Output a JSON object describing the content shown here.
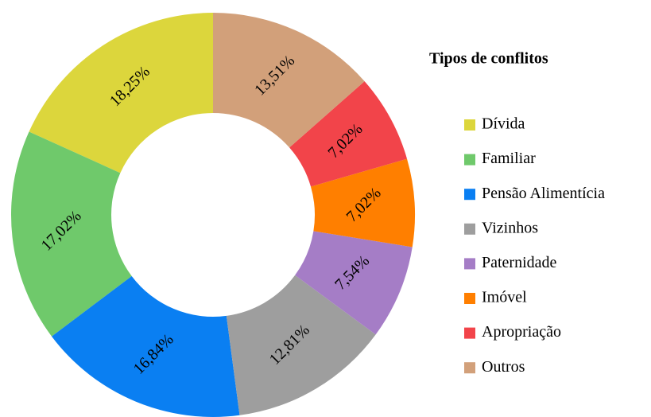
{
  "chart_data": {
    "type": "donut",
    "legend_title": "Tipos de conflitos",
    "categories": [
      "Dívida",
      "Familiar",
      "Pensão Alimentícia",
      "Vizinhos",
      "Paternidade",
      "Imóvel",
      "Apropriação",
      "Outros"
    ],
    "values": [
      18.25,
      17.02,
      16.84,
      12.81,
      7.54,
      7.02,
      7.02,
      13.51
    ],
    "value_labels": [
      "18,25%",
      "17,02%",
      "16,84%",
      "12,81%",
      "7,54%",
      "7,02%",
      "7,02%",
      "13,51%"
    ],
    "colors": [
      "#dcd63c",
      "#6fc96b",
      "#0a7ff2",
      "#9e9e9e",
      "#a57dc6",
      "#ff7f00",
      "#f2444a",
      "#d2a07a"
    ],
    "legend": "right"
  }
}
